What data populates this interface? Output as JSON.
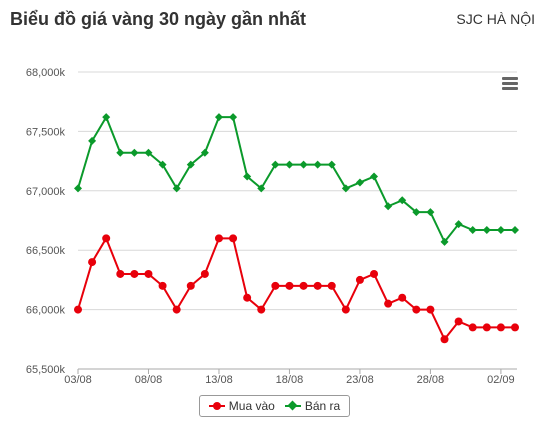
{
  "header": {
    "title": "Biểu đồ giá vàng 30 ngày gần nhất",
    "location": "SJC HÀ NỘI"
  },
  "chart_data": {
    "type": "line",
    "x": [
      "03/08",
      "04/08",
      "05/08",
      "06/08",
      "07/08",
      "08/08",
      "09/08",
      "10/08",
      "11/08",
      "12/08",
      "13/08",
      "14/08",
      "15/08",
      "16/08",
      "17/08",
      "18/08",
      "19/08",
      "20/08",
      "21/08",
      "22/08",
      "23/08",
      "24/08",
      "25/08",
      "26/08",
      "27/08",
      "28/08",
      "29/08",
      "30/08",
      "31/08",
      "01/09",
      "02/09",
      "03/09"
    ],
    "x_tick_labels": [
      "03/08",
      "08/08",
      "13/08",
      "18/08",
      "23/08",
      "28/08",
      "02/09"
    ],
    "y_tick_labels": [
      "65,500k",
      "66,000k",
      "66,500k",
      "67,000k",
      "67,500k",
      "68,000k"
    ],
    "ylim": [
      65500,
      68000
    ],
    "grid": true,
    "legend_placement": "bottom-center",
    "series": [
      {
        "name": "Mua vào",
        "color": "#e8000b",
        "marker": "circle",
        "values": [
          66000,
          66400,
          66600,
          66300,
          66300,
          66300,
          66200,
          66000,
          66200,
          66300,
          66600,
          66600,
          66100,
          66000,
          66200,
          66200,
          66200,
          66200,
          66200,
          66000,
          66250,
          66300,
          66050,
          66100,
          66000,
          66000,
          65750,
          65900,
          65850,
          65850,
          65850,
          65850
        ]
      },
      {
        "name": "Bán ra",
        "color": "#0b9a2b",
        "marker": "diamond",
        "values": [
          67020,
          67420,
          67620,
          67320,
          67320,
          67320,
          67220,
          67020,
          67220,
          67320,
          67620,
          67620,
          67120,
          67020,
          67220,
          67220,
          67220,
          67220,
          67220,
          67020,
          67070,
          67120,
          66870,
          66920,
          66820,
          66820,
          66570,
          66720,
          66670,
          66670,
          66670,
          66670
        ]
      }
    ]
  },
  "menu": {
    "icon": "hamburger-menu-icon"
  }
}
